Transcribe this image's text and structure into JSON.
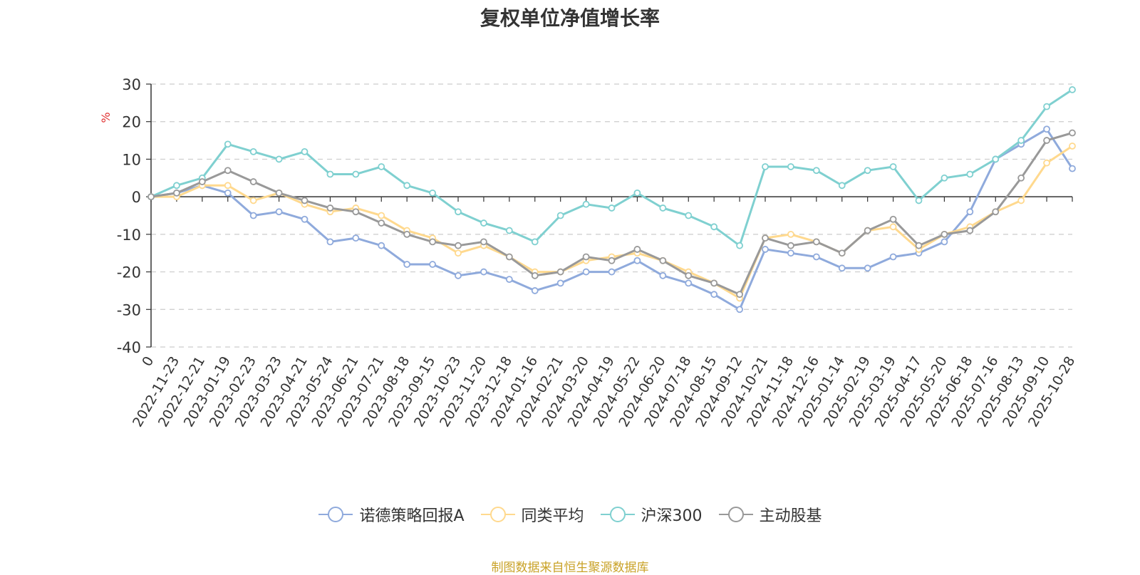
{
  "chart_data": {
    "type": "line",
    "title": "复权单位净值增长率",
    "ylabel": "%",
    "ylim": [
      -40,
      30
    ],
    "yticks": [
      30,
      20,
      10,
      0,
      -10,
      -20,
      -30,
      -40
    ],
    "grid": true,
    "legend_position": "bottom",
    "x_labels": [
      "0",
      "2022-11-23",
      "2022-12-21",
      "2023-01-19",
      "2023-02-23",
      "2023-03-23",
      "2023-04-21",
      "2023-05-24",
      "2023-06-21",
      "2023-07-21",
      "2023-08-18",
      "2023-09-15",
      "2023-10-23",
      "2023-11-20",
      "2023-12-18",
      "2024-01-16",
      "2024-02-21",
      "2024-03-20",
      "2024-04-19",
      "2024-05-22",
      "2024-06-20",
      "2024-07-18",
      "2024-08-15",
      "2024-09-12",
      "2024-10-21",
      "2024-11-18",
      "2024-12-16",
      "2025-01-14",
      "2025-02-19",
      "2025-03-19",
      "2025-04-17",
      "2025-05-20",
      "2025-06-18",
      "2025-07-16",
      "2025-08-13",
      "2025-09-10",
      "2025-10-28"
    ],
    "series": [
      {
        "name": "诺德策略回报A",
        "color": "#8faadc",
        "values": [
          0,
          1,
          3,
          1,
          -5,
          -4,
          -6,
          -12,
          -11,
          -13,
          -18,
          -18,
          -21,
          -20,
          -22,
          -25,
          -23,
          -20,
          -20,
          -17,
          -21,
          -23,
          -26,
          -30,
          -14,
          -15,
          -16,
          -19,
          -19,
          -16,
          -15,
          -12,
          -4,
          10,
          14,
          18,
          7.5
        ]
      },
      {
        "name": "同类平均",
        "color": "#ffd98e",
        "values": [
          0,
          0,
          3,
          3,
          -1,
          1,
          -2,
          -4,
          -3,
          -5,
          -9,
          -11,
          -15,
          -13,
          -16,
          -20,
          -20,
          -17,
          -16,
          -15,
          -17,
          -20,
          -23,
          -27,
          -11,
          -10,
          -12,
          -15,
          -9,
          -8,
          -14,
          -10,
          -8,
          -4,
          -1,
          9,
          13.5
        ]
      },
      {
        "name": "沪深300",
        "color": "#7fd0d0",
        "values": [
          0,
          3,
          5,
          14,
          12,
          10,
          12,
          6,
          6,
          8,
          3,
          1,
          -4,
          -7,
          -9,
          -12,
          -5,
          -2,
          -3,
          1,
          -3,
          -5,
          -8,
          -13,
          8,
          8,
          7,
          3,
          7,
          8,
          -1,
          5,
          6,
          10,
          15,
          24,
          28.5
        ]
      },
      {
        "name": "主动股基",
        "color": "#999999",
        "values": [
          0,
          1,
          4,
          7,
          4,
          1,
          -1,
          -3,
          -4,
          -7,
          -10,
          -12,
          -13,
          -12,
          -16,
          -21,
          -20,
          -16,
          -17,
          -14,
          -17,
          -21,
          -23,
          -26,
          -11,
          -13,
          -12,
          -15,
          -9,
          -6,
          -13,
          -10,
          -9,
          -4,
          5,
          15,
          17
        ]
      }
    ]
  },
  "source_note": "制图数据来自恒生聚源数据库"
}
